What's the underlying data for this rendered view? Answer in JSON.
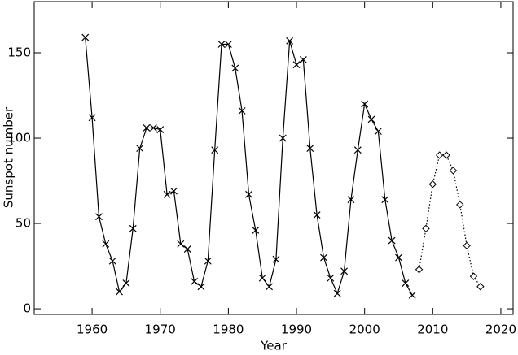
{
  "chart_data": {
    "type": "line",
    "x_label": "Year",
    "y_label": "Sunspot number",
    "series": [
      {
        "color": "#000000",
        "line": "solid",
        "marker": "x",
        "x": [
          1959,
          1960,
          1961,
          1962,
          1963,
          1964,
          1965,
          1966,
          1967,
          1968,
          1969,
          1970,
          1971,
          1972,
          1973,
          1974,
          1975,
          1976,
          1977,
          1978,
          1979,
          1980,
          1981,
          1982,
          1983,
          1984,
          1985,
          1986,
          1987,
          1988,
          1989,
          1990,
          1991,
          1992,
          1993,
          1994,
          1995,
          1996,
          1997,
          1998,
          1999,
          2000,
          2001,
          2002,
          2003,
          2004,
          2005,
          2006,
          2007
        ],
        "values": [
          159,
          112,
          54,
          38,
          28,
          10,
          15,
          47,
          94,
          106,
          106,
          105,
          67,
          69,
          38,
          35,
          16,
          13,
          28,
          93,
          155,
          155,
          141,
          116,
          67,
          46,
          18,
          13,
          29,
          100,
          157,
          143,
          146,
          94,
          55,
          30,
          18,
          9,
          22,
          64,
          93,
          120,
          111,
          104,
          64,
          40,
          30,
          15,
          8
        ]
      },
      {
        "color": "#000000",
        "line": "dotted",
        "marker": "diamond",
        "x": [
          2008,
          2009,
          2010,
          2011,
          2012,
          2013,
          2014,
          2015,
          2016,
          2017
        ],
        "values": [
          23,
          47,
          73,
          90,
          90,
          81,
          61,
          37,
          19,
          13
        ]
      }
    ],
    "xlim": [
      1951.5,
      2021.8
    ],
    "xticks": [
      1960,
      1970,
      1980,
      1990,
      2000,
      2010,
      2020
    ],
    "ylim": [
      -3.3,
      180
    ],
    "yticks": [
      0,
      50,
      100,
      150
    ]
  }
}
